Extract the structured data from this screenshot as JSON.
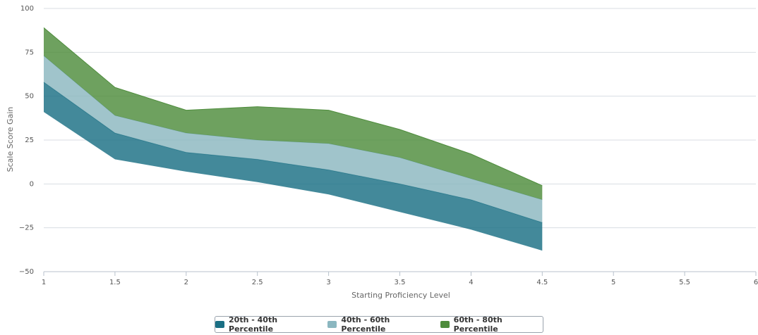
{
  "chart_data": {
    "type": "area",
    "title": "",
    "xlabel": "Starting Proficiency Level",
    "ylabel": "Scale Score Gain",
    "xlim": [
      1,
      6
    ],
    "ylim": [
      -50,
      100
    ],
    "x_ticks": [
      "1",
      "1.5",
      "2",
      "2.5",
      "3",
      "3.5",
      "4",
      "4.5",
      "5",
      "5.5",
      "6"
    ],
    "y_ticks": [
      "−50",
      "−25",
      "0",
      "25",
      "50",
      "75",
      "100"
    ],
    "grid": true,
    "legend_position": "bottom-center",
    "x": [
      1,
      1.5,
      2,
      2.5,
      3,
      3.5,
      4,
      4.5
    ],
    "series": [
      {
        "name": "20th - 40th Percentile",
        "color": "#1a6f84",
        "low": [
          41,
          14,
          7,
          1,
          -6,
          -16,
          -26,
          -38
        ],
        "high": [
          58,
          29,
          18,
          14,
          8,
          0,
          -9,
          -22
        ]
      },
      {
        "name": "40th - 60th Percentile",
        "color": "#8bb7c0",
        "low": [
          58,
          29,
          18,
          14,
          8,
          0,
          -9,
          -22
        ],
        "high": [
          73,
          39,
          29,
          25,
          23,
          15,
          3,
          -9
        ]
      },
      {
        "name": "60th - 80th Percentile",
        "color": "#4e8c3c",
        "low": [
          73,
          39,
          29,
          25,
          23,
          15,
          3,
          -9
        ],
        "high": [
          89,
          55,
          42,
          44,
          42,
          31,
          17,
          -1
        ]
      }
    ]
  },
  "legend": {
    "items": [
      {
        "label": "20th - 40th Percentile",
        "color": "#1a6f84"
      },
      {
        "label": "40th - 60th Percentile",
        "color": "#8bb7c0"
      },
      {
        "label": "60th - 80th Percentile",
        "color": "#4e8c3c"
      }
    ]
  }
}
